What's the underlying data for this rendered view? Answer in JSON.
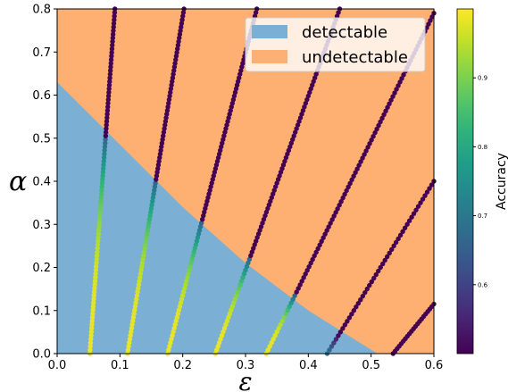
{
  "chart_data": {
    "type": "scatter",
    "title": "",
    "xlabel": "ε",
    "ylabel": "α",
    "xlim": [
      0.0,
      0.6
    ],
    "ylim": [
      0.0,
      0.8
    ],
    "xticks": [
      "0.0",
      "0.1",
      "0.2",
      "0.3",
      "0.4",
      "0.5",
      "0.6"
    ],
    "yticks": [
      "0.0",
      "0.1",
      "0.2",
      "0.3",
      "0.4",
      "0.5",
      "0.6",
      "0.7",
      "0.8"
    ],
    "regions": [
      {
        "name": "detectable",
        "color": "#7bafd4"
      },
      {
        "name": "undetectable",
        "color": "#fdb072"
      }
    ],
    "boundary": [
      [
        0.0,
        0.63
      ],
      [
        0.1,
        0.485
      ],
      [
        0.2,
        0.34
      ],
      [
        0.3,
        0.21
      ],
      [
        0.4,
        0.1
      ],
      [
        0.51,
        0.0
      ]
    ],
    "colorbar": {
      "label": "Accuracy",
      "range": [
        0.5,
        1.0
      ],
      "ticks": [
        "0.6",
        "0.7",
        "0.8",
        "0.9"
      ],
      "colormap": "viridis"
    },
    "series": [
      {
        "x_start": 0.052,
        "x_end": 0.092,
        "alpha_boundary": 0.505
      },
      {
        "x_start": 0.112,
        "x_end": 0.202,
        "alpha_boundary": 0.4
      },
      {
        "x_start": 0.176,
        "x_end": 0.318,
        "alpha_boundary": 0.305
      },
      {
        "x_start": 0.252,
        "x_end": 0.45,
        "alpha_boundary": 0.22
      },
      {
        "x_start": 0.333,
        "x_end": 0.6,
        "alpha_boundary": 0.135,
        "alpha_end": 0.79
      },
      {
        "x_start": 0.43,
        "x_end": 0.6,
        "alpha_boundary": 0.045,
        "alpha_end": 0.4
      },
      {
        "x_start": 0.535,
        "x_end": 0.6,
        "alpha_boundary": 0.0,
        "alpha_end": 0.115
      }
    ]
  }
}
